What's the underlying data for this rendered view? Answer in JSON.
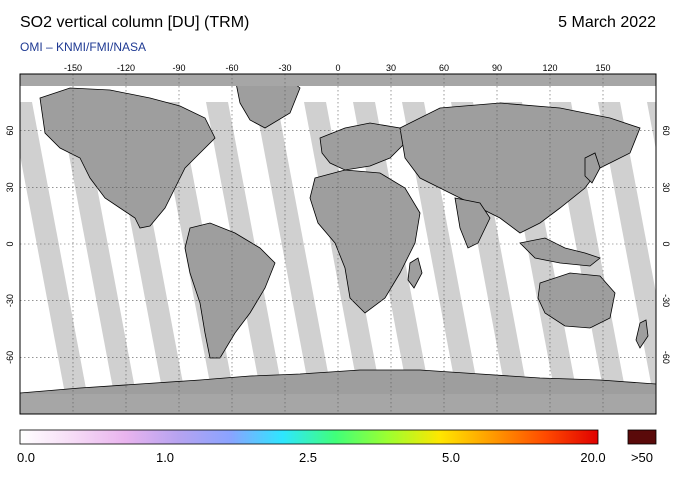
{
  "header": {
    "title": "SO2 vertical column [DU] (TRM)",
    "date": "5 March 2022",
    "credit": "OMI  –  KNMI/FMI/NASA"
  },
  "map": {
    "lon_ticks": [
      -150,
      -120,
      -90,
      -60,
      -30,
      0,
      30,
      60,
      90,
      120,
      150
    ],
    "lat_ticks": [
      60,
      30,
      0,
      -30,
      -60
    ],
    "lon_range": [
      -180,
      180
    ],
    "lat_range": [
      -90,
      90
    ],
    "grid": true,
    "colors": {
      "no_data": "#a6a6a6",
      "land": "#9e9e9e",
      "swath": "#d0d0d0",
      "clean": "#ffffff",
      "coast": "#000000"
    }
  },
  "colorbar": {
    "labels": [
      "0.0",
      "1.0",
      "2.5",
      "5.0",
      "20.0",
      ">50"
    ],
    "overflow_color": "#5a0a0a",
    "stops": [
      "#ffffff",
      "#f6dcf6",
      "#e9b4ee",
      "#b7a3f0",
      "#8aa3ff",
      "#2ee6ff",
      "#40ff7a",
      "#9cff30",
      "#ffe600",
      "#ff9a00",
      "#ff4a00",
      "#e00000"
    ]
  }
}
